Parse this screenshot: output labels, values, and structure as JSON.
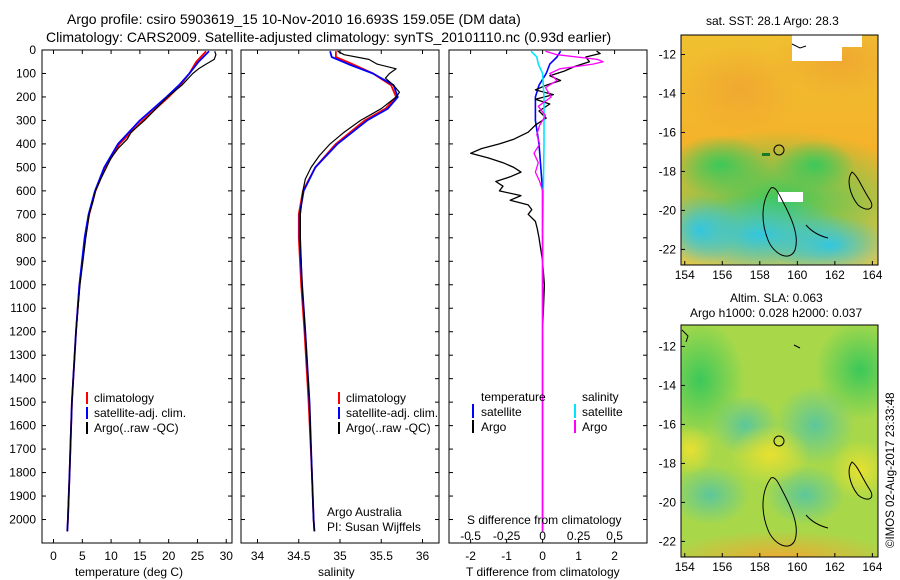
{
  "header": {
    "title_line1": "Argo profile: csiro 5903619_15 10-Nov-2010 16.693S 159.05E (DM data)",
    "title_line2": "Climatology: CARS2009. Satellite-adjusted climatology: synTS_20101110.nc (0.93d earlier)"
  },
  "colors": {
    "climatology": "#ff0000",
    "satellite": "#0000ff",
    "argo": "#000000",
    "salinity_satellite": "#00e5ff",
    "salinity_argo": "#ff00ff"
  },
  "chart_data": [
    {
      "type": "line",
      "name": "temperature-profile",
      "xlabel": "temperature (deg C)",
      "ylabel": "",
      "xlim": [
        -2,
        31
      ],
      "ylim": [
        2100,
        0
      ],
      "xticks": [
        0,
        5,
        10,
        15,
        20,
        25,
        30
      ],
      "yticks": [
        0,
        100,
        200,
        300,
        400,
        500,
        600,
        700,
        800,
        900,
        1000,
        1100,
        1200,
        1300,
        1400,
        1500,
        1600,
        1700,
        1800,
        1900,
        2000
      ],
      "legend": [
        "climatology",
        "satellite-adj. clim.",
        "Argo(..raw -QC)"
      ],
      "series": [
        {
          "name": "climatology",
          "depth": [
            5,
            50,
            100,
            150,
            200,
            300,
            400,
            500,
            600,
            700,
            800,
            1000,
            1200,
            1500,
            1800,
            2000,
            2050
          ],
          "values": [
            26.5,
            24.8,
            23.6,
            22.0,
            20.0,
            15.5,
            11.5,
            9.0,
            7.3,
            6.2,
            5.5,
            4.5,
            3.9,
            3.2,
            2.8,
            2.5,
            2.4
          ]
        },
        {
          "name": "satellite",
          "depth": [
            5,
            50,
            100,
            150,
            200,
            300,
            400,
            500,
            600,
            700,
            800,
            1000,
            1200,
            1500,
            1800,
            2000,
            2050
          ],
          "values": [
            27.0,
            25.2,
            23.6,
            21.8,
            19.6,
            15.0,
            11.2,
            8.8,
            7.2,
            6.1,
            5.4,
            4.5,
            3.9,
            3.2,
            2.8,
            2.5,
            2.4
          ]
        },
        {
          "name": "argo",
          "depth": [
            5,
            20,
            40,
            60,
            80,
            100,
            150,
            200,
            250,
            300,
            350,
            380,
            420,
            460,
            500,
            550,
            600,
            650,
            700,
            800,
            1000,
            1200,
            1500,
            1800,
            2000,
            2050
          ],
          "values": [
            28.0,
            28.2,
            27.9,
            26.5,
            25.2,
            24.2,
            22.3,
            19.8,
            17.8,
            15.8,
            13.5,
            12.8,
            11.2,
            10.0,
            9.2,
            8.2,
            7.3,
            6.8,
            6.2,
            5.6,
            4.6,
            3.9,
            3.2,
            2.8,
            2.5,
            2.4
          ]
        }
      ]
    },
    {
      "type": "line",
      "name": "salinity-profile",
      "xlabel": "salinity",
      "ylabel": "",
      "xlim": [
        33.8,
        36.2
      ],
      "ylim": [
        2100,
        0
      ],
      "xticks": [
        34,
        34.5,
        35,
        35.5,
        36
      ],
      "legend": [
        "climatology",
        "satellite-adj. clim.",
        "Argo(..raw -QC)"
      ],
      "annotation": [
        "Argo Australia",
        "PI: Susan Wijffels"
      ],
      "series": [
        {
          "name": "climatology",
          "depth": [
            5,
            30,
            60,
            100,
            150,
            200,
            250,
            300,
            400,
            500,
            600,
            700,
            800,
            1000,
            1200,
            1500,
            1800,
            2000,
            2050
          ],
          "values": [
            34.95,
            34.95,
            35.15,
            35.4,
            35.62,
            35.68,
            35.55,
            35.3,
            34.95,
            34.7,
            34.55,
            34.5,
            34.5,
            34.53,
            34.57,
            34.62,
            34.66,
            34.68,
            34.69
          ]
        },
        {
          "name": "satellite",
          "depth": [
            5,
            30,
            60,
            100,
            150,
            200,
            250,
            300,
            400,
            500,
            600,
            700,
            800,
            1000,
            1200,
            1500,
            1800,
            2000,
            2050
          ],
          "values": [
            34.88,
            34.9,
            35.1,
            35.4,
            35.65,
            35.7,
            35.58,
            35.33,
            34.97,
            34.7,
            34.56,
            34.51,
            34.51,
            34.54,
            34.58,
            34.63,
            34.66,
            34.68,
            34.69
          ]
        },
        {
          "name": "argo",
          "depth": [
            5,
            20,
            40,
            60,
            80,
            100,
            120,
            150,
            180,
            200,
            250,
            300,
            350,
            400,
            450,
            500,
            550,
            600,
            700,
            800,
            1000,
            1200,
            1500,
            1800,
            2000,
            2050
          ],
          "values": [
            34.97,
            35.05,
            35.35,
            35.45,
            35.68,
            35.6,
            35.55,
            35.65,
            35.72,
            35.68,
            35.5,
            35.25,
            35.05,
            34.88,
            34.75,
            34.65,
            34.58,
            34.55,
            34.52,
            34.52,
            34.54,
            34.58,
            34.63,
            34.66,
            34.68,
            34.69
          ]
        }
      ]
    },
    {
      "type": "line",
      "name": "difference-profile",
      "xlabel": "T difference from climatology",
      "xlabel_top": "S difference from climatology",
      "ylabel": "",
      "xlim": [
        -2.6,
        2.9
      ],
      "ylim": [
        2100,
        0
      ],
      "xticks": [
        -2,
        -1,
        0,
        1,
        2
      ],
      "xticks_s": [
        -0.5,
        -0.25,
        0,
        0.25,
        0.5
      ],
      "legend_headers": [
        "temperature",
        "salinity"
      ],
      "legend": [
        "satellite",
        "Argo",
        "satellite",
        "Argo"
      ],
      "series": [
        {
          "name": "temperature satellite",
          "depth": [
            5,
            30,
            60,
            100,
            150,
            200,
            300,
            400,
            600,
            800,
            1200,
            1600,
            2000,
            2050
          ],
          "values": [
            0.5,
            0.4,
            0.2,
            0.1,
            -0.1,
            -0.2,
            -0.2,
            -0.1,
            0.0,
            0.0,
            0.0,
            0.0,
            0.0,
            0.0
          ]
        },
        {
          "name": "temperature argo",
          "depth": [
            5,
            15,
            30,
            50,
            70,
            90,
            110,
            130,
            150,
            170,
            190,
            210,
            230,
            260,
            290,
            320,
            350,
            380,
            400,
            420,
            440,
            460,
            480,
            500,
            520,
            540,
            560,
            580,
            600,
            620,
            640,
            660,
            680,
            700,
            730,
            760,
            800,
            900,
            1000,
            1200,
            1500,
            1800,
            2000,
            2050
          ],
          "values": [
            1.5,
            1.6,
            1.2,
            1.3,
            0.9,
            0.6,
            0.2,
            0.5,
            0.1,
            -0.2,
            0.3,
            -0.2,
            0.2,
            -0.1,
            0.1,
            -0.2,
            -0.4,
            -0.8,
            -1.2,
            -1.7,
            -2.0,
            -1.5,
            -1.1,
            -0.8,
            -0.6,
            -0.9,
            -1.3,
            -1.1,
            -1.2,
            -0.6,
            -0.9,
            -0.4,
            -0.3,
            -0.4,
            -0.2,
            -0.15,
            -0.1,
            0.0,
            0.05,
            0.0,
            0.0,
            0.0,
            0.0,
            0.0
          ]
        },
        {
          "name": "salinity satellite",
          "depth": [
            5,
            30,
            60,
            100,
            200,
            400,
            800,
            1200,
            2000,
            2050
          ],
          "values": [
            -0.08,
            -0.04,
            -0.03,
            0.0,
            0.01,
            0.01,
            0.0,
            0.0,
            0.0,
            0.0
          ]
        },
        {
          "name": "salinity argo",
          "depth": [
            5,
            20,
            40,
            50,
            60,
            80,
            100,
            130,
            160,
            200,
            240,
            280,
            320,
            360,
            400,
            440,
            480,
            520,
            560,
            600,
            700,
            800,
            1000,
            1200,
            1300,
            1500,
            1800,
            2000,
            2050
          ],
          "values": [
            0.02,
            0.1,
            0.38,
            0.42,
            0.35,
            0.12,
            0.05,
            0.1,
            0.02,
            0.06,
            -0.03,
            0.02,
            -0.02,
            -0.04,
            -0.02,
            -0.06,
            -0.03,
            -0.05,
            -0.02,
            0.0,
            0.0,
            0.0,
            0.0,
            0.0,
            0.0,
            0.0,
            0.0,
            0.0,
            0.0
          ]
        }
      ]
    }
  ],
  "sst_map": {
    "title": "sat. SST: 28.1  Argo: 28.3",
    "yticks": [
      "-12",
      "-14",
      "-16",
      "-18",
      "-20",
      "-22"
    ],
    "xticks": [
      "154",
      "156",
      "158",
      "160",
      "162",
      "164"
    ]
  },
  "sla_map": {
    "title1": "Altim. SLA: 0.063",
    "title2": "Argo h1000: 0.028 h2000: 0.037",
    "yticks": [
      "-12",
      "-14",
      "-16",
      "-18",
      "-20",
      "-22"
    ],
    "xticks": [
      "154",
      "156",
      "158",
      "160",
      "162",
      "164"
    ]
  },
  "credit": "©IMOS 02-Aug-2017 23:33:48"
}
